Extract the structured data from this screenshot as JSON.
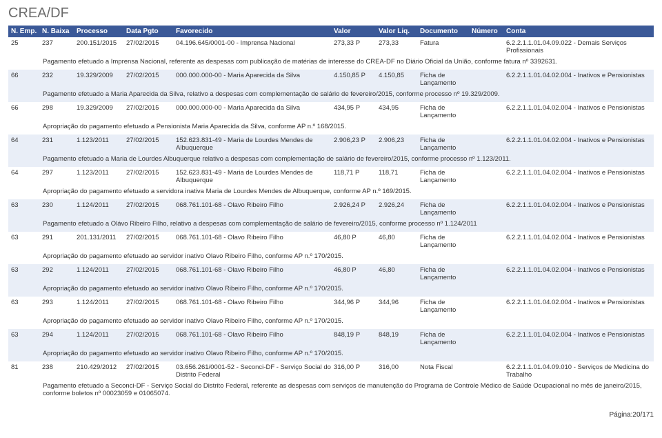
{
  "title": "CREA/DF",
  "headers": {
    "nemp": "N. Emp.",
    "nbaixa": "N. Baixa",
    "processo": "Processo",
    "data": "Data Pgto",
    "favorecido": "Favorecido",
    "valor": "Valor",
    "valorliq": "Valor Liq.",
    "documento": "Documento",
    "numero": "Número",
    "conta": "Conta"
  },
  "rows": [
    {
      "nemp": "25",
      "nbaixa": "237",
      "processo": "200.151/2015",
      "data": "27/02/2015",
      "favorecido": "04.196.645/0001-00 - Imprensa Nacional",
      "valor": "273,33 P",
      "valorliq": "273,33",
      "documento": "Fatura",
      "numero": "",
      "conta": "6.2.2.1.1.01.04.09.022 - Demais Serviços Profissionais",
      "desc": "Pagamento efetuado a Imprensa Nacional, referente as despesas com publicação de matérias de interesse do CREA-DF no Diário Oficial da União, conforme fatura nº 3392631.",
      "striped": false
    },
    {
      "nemp": "66",
      "nbaixa": "232",
      "processo": "19.329/2009",
      "data": "27/02/2015",
      "favorecido": "000.000.000-00 - Maria Aparecida da Silva",
      "valor": "4.150,85 P",
      "valorliq": "4.150,85",
      "documento": "Ficha de Lançamento",
      "numero": "",
      "conta": "6.2.2.1.1.01.04.02.004 - Inativos e Pensionistas",
      "desc": "Pagamento efetuado a Maria Aparecida da Silva, relativo a despesas com complementação de salário de fevereiro/2015, conforme processo nº 19.329/2009.",
      "striped": true
    },
    {
      "nemp": "66",
      "nbaixa": "298",
      "processo": "19.329/2009",
      "data": "27/02/2015",
      "favorecido": "000.000.000-00 - Maria Aparecida da Silva",
      "valor": "434,95 P",
      "valorliq": "434,95",
      "documento": "Ficha de Lançamento",
      "numero": "",
      "conta": "6.2.2.1.1.01.04.02.004 - Inativos e Pensionistas",
      "desc": "Apropriação do pagamento efetuado a Pensionista Maria Aparecida da Silva, conforme AP n.º 168/2015.",
      "striped": false
    },
    {
      "nemp": "64",
      "nbaixa": "231",
      "processo": "1.123/2011",
      "data": "27/02/2015",
      "favorecido": "152.623.831-49 - Maria de Lourdes Mendes de Albuquerque",
      "valor": "2.906,23 P",
      "valorliq": "2.906,23",
      "documento": "Ficha de Lançamento",
      "numero": "",
      "conta": "6.2.2.1.1.01.04.02.004 - Inativos e Pensionistas",
      "desc": "Pagamento efetuado a Maria de Lourdes Albuquerque relativo a despesas com complementação de salário de fevereiro/2015, conforme processo nº 1.123/2011.",
      "striped": true
    },
    {
      "nemp": "64",
      "nbaixa": "297",
      "processo": "1.123/2011",
      "data": "27/02/2015",
      "favorecido": "152.623.831-49 - Maria de Lourdes Mendes de Albuquerque",
      "valor": "118,71 P",
      "valorliq": "118,71",
      "documento": "Ficha de Lançamento",
      "numero": "",
      "conta": "6.2.2.1.1.01.04.02.004 - Inativos e Pensionistas",
      "desc": "Apropriação do pagamento efetuado a servidora inativa Maria de Lourdes Mendes de Albuquerque, conforme AP n.º 169/2015.",
      "striped": false
    },
    {
      "nemp": "63",
      "nbaixa": "230",
      "processo": "1.124/2011",
      "data": "27/02/2015",
      "favorecido": "068.761.101-68 - Olavo Ribeiro Filho",
      "valor": "2.926,24 P",
      "valorliq": "2.926,24",
      "documento": "Ficha de Lançamento",
      "numero": "",
      "conta": "6.2.2.1.1.01.04.02.004 - Inativos e Pensionistas",
      "desc": "Pagamento efetuado a Olávo Ribeiro Filho, relativo a despesas com complementação de salário de fevereiro/2015, conforme processo nº 1.124/2011",
      "striped": true
    },
    {
      "nemp": "63",
      "nbaixa": "291",
      "processo": "201.131/2011",
      "data": "27/02/2015",
      "favorecido": "068.761.101-68 - Olavo Ribeiro Filho",
      "valor": "46,80 P",
      "valorliq": "46,80",
      "documento": "Ficha de Lançamento",
      "numero": "",
      "conta": "6.2.2.1.1.01.04.02.004 - Inativos e Pensionistas",
      "desc": "Apropriação do pagamento efetuado ao servidor inativo Olavo Ribeiro Filho, conforme AP n.º 170/2015.",
      "striped": false
    },
    {
      "nemp": "63",
      "nbaixa": "292",
      "processo": "1.124/2011",
      "data": "27/02/2015",
      "favorecido": "068.761.101-68 - Olavo Ribeiro Filho",
      "valor": "46,80 P",
      "valorliq": "46,80",
      "documento": "Ficha de Lançamento",
      "numero": "",
      "conta": "6.2.2.1.1.01.04.02.004 - Inativos e Pensionistas",
      "desc": "Apropriação do pagamento efetuado ao servidor inativo Olavo Ribeiro Filho, conforme AP n.º 170/2015.",
      "striped": true
    },
    {
      "nemp": "63",
      "nbaixa": "293",
      "processo": "1.124/2011",
      "data": "27/02/2015",
      "favorecido": "068.761.101-68 - Olavo Ribeiro Filho",
      "valor": "344,96 P",
      "valorliq": "344,96",
      "documento": "Ficha de Lançamento",
      "numero": "",
      "conta": "6.2.2.1.1.01.04.02.004 - Inativos e Pensionistas",
      "desc": "Apropriação do pagamento efetuado ao servidor inativo Olavo Ribeiro Filho, conforme AP n.º 170/2015.",
      "striped": false
    },
    {
      "nemp": "63",
      "nbaixa": "294",
      "processo": "1.124/2011",
      "data": "27/02/2015",
      "favorecido": "068.761.101-68 - Olavo Ribeiro Filho",
      "valor": "848,19 P",
      "valorliq": "848,19",
      "documento": "Ficha de Lançamento",
      "numero": "",
      "conta": "6.2.2.1.1.01.04.02.004 - Inativos e Pensionistas",
      "desc": "Apropriação do pagamento efetuado ao servidor inativo Olavo Ribeiro Filho, conforme AP n.º 170/2015.",
      "striped": true
    },
    {
      "nemp": "81",
      "nbaixa": "238",
      "processo": "210.429/2012",
      "data": "27/02/2015",
      "favorecido": "03.656.261/0001-52 - Seconci-DF - Serviço Social do Distrito Federal",
      "valor": "316,00 P",
      "valorliq": "316,00",
      "documento": "Nota Fiscal",
      "numero": "",
      "conta": "6.2.2.1.1.01.04.09.010 - Serviços de Medicina do Trabalho",
      "desc": "Pagamento efetuado a Seconci-DF - Serviço Social do Distrito Federal, referente as despesas com serviços de manutenção do Programa de Controle Médico de Saúde Ocupacional no mês de janeiro/2015, conforme boletos nº 00023059 e 01065074.",
      "striped": false
    }
  ],
  "footer": "Página:20/171"
}
